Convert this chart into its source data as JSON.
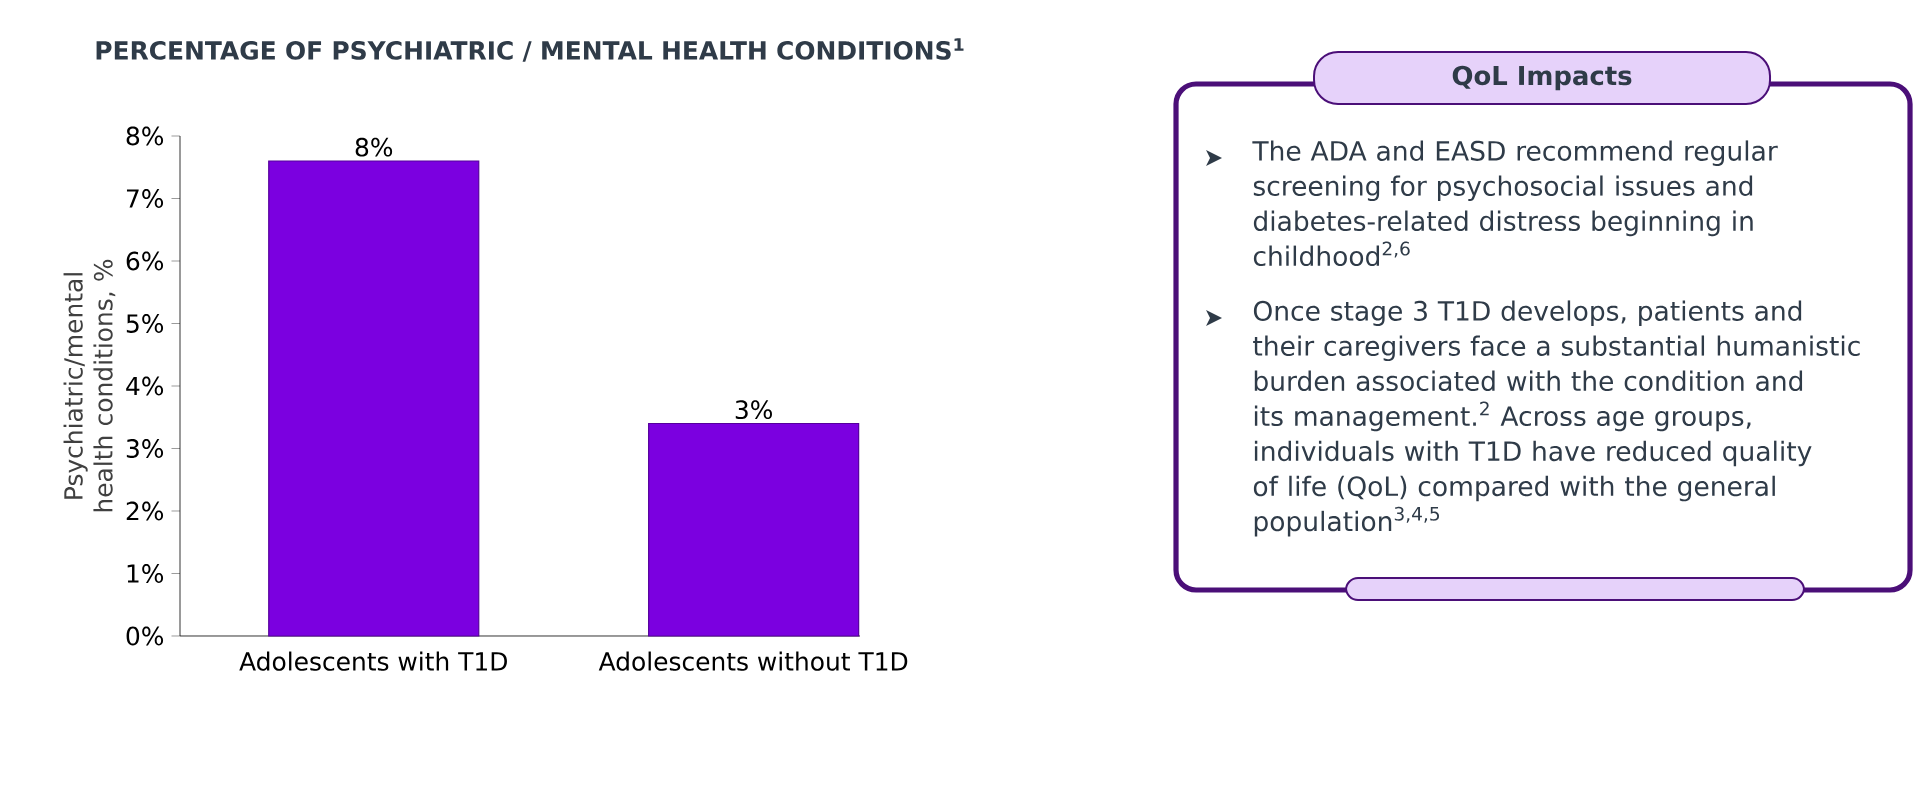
{
  "chart_data": [
    {
      "type": "bar",
      "title": "PERCENTAGE OF PSYCHIATRIC / MENTAL HEALTH CONDITIONS$^{1}$",
      "ylabel": "Psychiatric/mental health conditions, %",
      "categories": [
        "Adolescents with T1D",
        "Adolescents without T1D"
      ],
      "values": [
        7.6,
        3.4
      ],
      "value_labels": [
        "8%",
        "3%"
      ],
      "color": "#7b00e0",
      "ylim": [
        0,
        8
      ],
      "yticks": [
        {
          "value": 0,
          "label": "0%"
        },
        {
          "value": 1,
          "label": "1%"
        },
        {
          "value": 2,
          "label": "2%"
        },
        {
          "value": 3,
          "label": "3%"
        },
        {
          "value": 4,
          "label": "4%"
        },
        {
          "value": 5,
          "label": "5%"
        },
        {
          "value": 6,
          "label": "6%"
        },
        {
          "value": 7,
          "label": "7%"
        },
        {
          "value": 8,
          "label": "8%"
        }
      ],
      "grid": false
    },
    {
      "type": "other",
      "title": "QoL Impacts",
      "annotations": [
        "The ADA and EASD recommend regular screening for psychosocial issues and diabetes-related distress beginning in childhood$^{2,6}$",
        "Once stage 3 T1D develops, patients and their caregivers face a substantial humanistic burden associated with the condition and its management.$^{2}$ Across age groups, individuals with T1D have reduced quality of life (QoL) compared with the general population$^{3,4,5}$"
      ]
    }
  ]
}
